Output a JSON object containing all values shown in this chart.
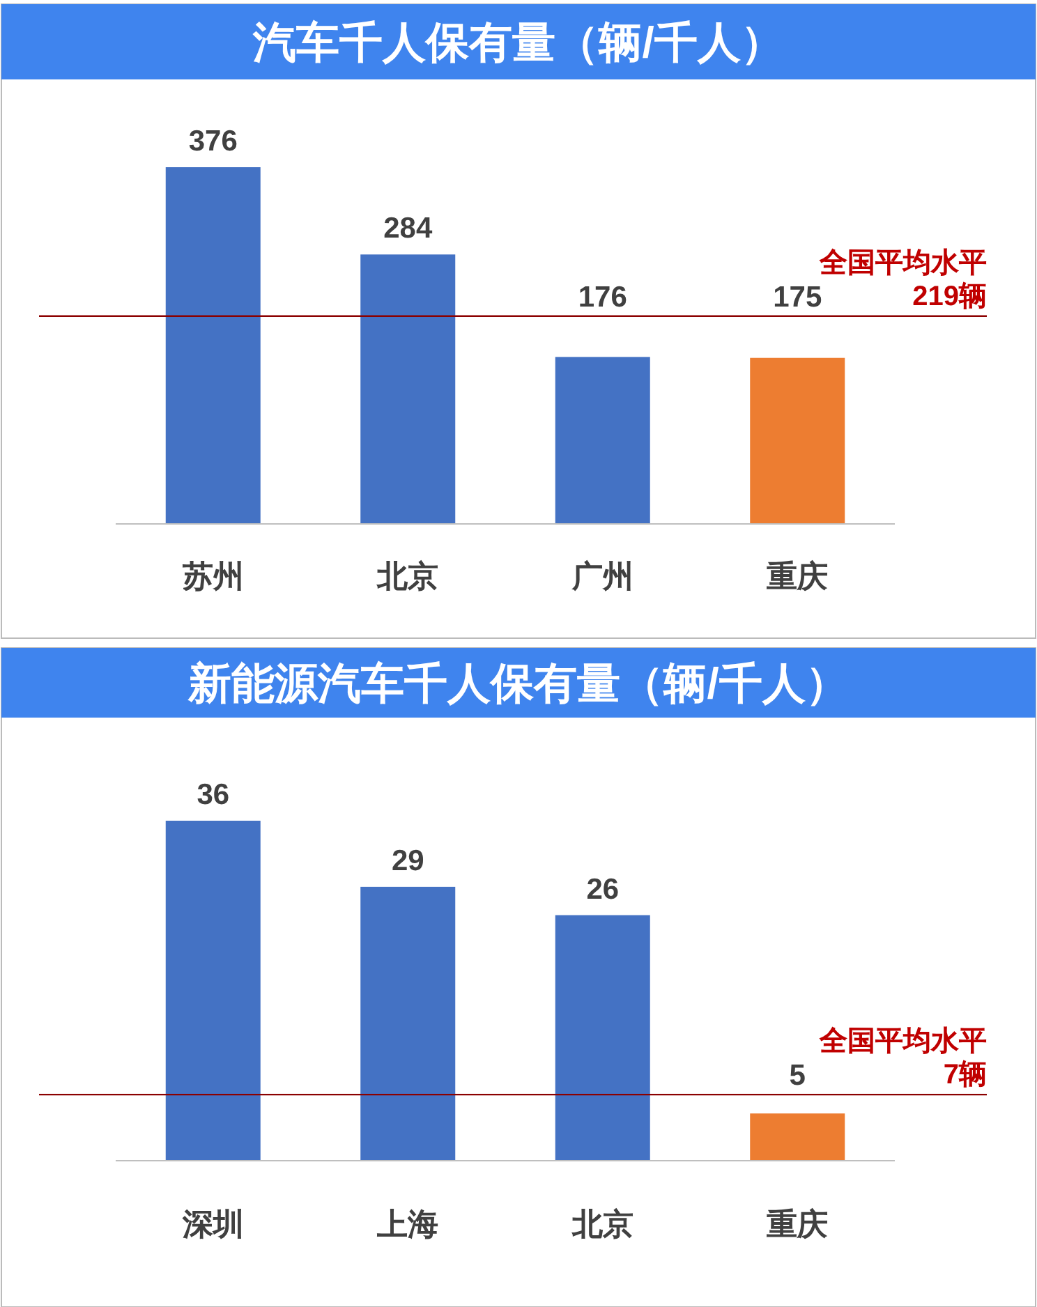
{
  "chart_data": [
    {
      "type": "bar",
      "title": "汽车千人保有量（辆/千人）",
      "categories": [
        "苏州",
        "北京",
        "广州",
        "重庆"
      ],
      "values": [
        376,
        284,
        176,
        175
      ],
      "colors": [
        "#4472c4",
        "#4472c4",
        "#4472c4",
        "#ed7d31"
      ],
      "data_labels": true,
      "ref_lines": [
        {
          "axis": "y",
          "value": 219,
          "label": "全国平均水平\n219辆",
          "color": "#8b0000"
        }
      ]
    },
    {
      "type": "bar",
      "title": "新能源汽车千人保有量（辆/千人）",
      "categories": [
        "深圳",
        "上海",
        "北京",
        "重庆"
      ],
      "values": [
        36,
        29,
        26,
        5
      ],
      "colors": [
        "#4472c4",
        "#4472c4",
        "#4472c4",
        "#ed7d31"
      ],
      "data_labels": true,
      "ref_lines": [
        {
          "axis": "y",
          "value": 7,
          "label": "全国平均水平\n7辆",
          "color": "#8b0000"
        }
      ]
    }
  ]
}
